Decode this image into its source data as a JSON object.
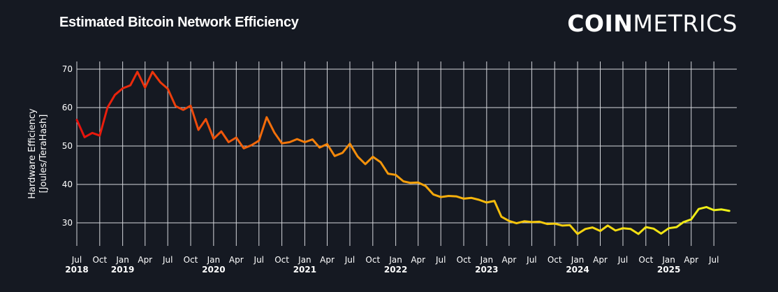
{
  "title": "Estimated Bitcoin Network Efficiency",
  "logo": {
    "bold": "COIN",
    "light": "METRICS"
  },
  "chart_data": {
    "type": "line",
    "title": "Estimated Bitcoin Network Efficiency",
    "ylabel_line1": "Hardware Efficiency",
    "ylabel_line2": "[Joules/TeraHash]",
    "xlabel": "",
    "ylim": [
      24,
      72
    ],
    "xlim": [
      "2018-07-01",
      "2025-10-01"
    ],
    "grid": true,
    "color_gradient": [
      "#e8100c",
      "#f47b0a",
      "#f6c40c",
      "#eef519"
    ],
    "yticks": [
      30,
      40,
      50,
      60,
      70
    ],
    "x_ticks": [
      {
        "date": "2018-07-01",
        "label": "Jul",
        "year": "2018"
      },
      {
        "date": "2018-10-01",
        "label": "Oct",
        "year": ""
      },
      {
        "date": "2019-01-01",
        "label": "Jan",
        "year": "2019"
      },
      {
        "date": "2019-04-01",
        "label": "Apr",
        "year": ""
      },
      {
        "date": "2019-07-01",
        "label": "Jul",
        "year": ""
      },
      {
        "date": "2019-10-01",
        "label": "Oct",
        "year": ""
      },
      {
        "date": "2020-01-01",
        "label": "Jan",
        "year": "2020"
      },
      {
        "date": "2020-04-01",
        "label": "Apr",
        "year": ""
      },
      {
        "date": "2020-07-01",
        "label": "Jul",
        "year": ""
      },
      {
        "date": "2020-10-01",
        "label": "Oct",
        "year": ""
      },
      {
        "date": "2021-01-01",
        "label": "Jan",
        "year": "2021"
      },
      {
        "date": "2021-04-01",
        "label": "Apr",
        "year": ""
      },
      {
        "date": "2021-07-01",
        "label": "Jul",
        "year": ""
      },
      {
        "date": "2021-10-01",
        "label": "Oct",
        "year": ""
      },
      {
        "date": "2022-01-01",
        "label": "Jan",
        "year": "2022"
      },
      {
        "date": "2022-04-01",
        "label": "Apr",
        "year": ""
      },
      {
        "date": "2022-07-01",
        "label": "Jul",
        "year": ""
      },
      {
        "date": "2022-10-01",
        "label": "Oct",
        "year": ""
      },
      {
        "date": "2023-01-01",
        "label": "Jan",
        "year": "2023"
      },
      {
        "date": "2023-04-01",
        "label": "Apr",
        "year": ""
      },
      {
        "date": "2023-07-01",
        "label": "Jul",
        "year": ""
      },
      {
        "date": "2023-10-01",
        "label": "Oct",
        "year": ""
      },
      {
        "date": "2024-01-01",
        "label": "Jan",
        "year": "2024"
      },
      {
        "date": "2024-04-01",
        "label": "Apr",
        "year": ""
      },
      {
        "date": "2024-07-01",
        "label": "Jul",
        "year": ""
      },
      {
        "date": "2024-10-01",
        "label": "Oct",
        "year": ""
      },
      {
        "date": "2025-01-01",
        "label": "Jan",
        "year": "2025"
      },
      {
        "date": "2025-04-01",
        "label": "Apr",
        "year": ""
      },
      {
        "date": "2025-07-01",
        "label": "Jul",
        "year": ""
      }
    ],
    "series": [
      {
        "x": [
          "2018-07",
          "2018-08",
          "2018-09",
          "2018-10",
          "2018-11",
          "2018-12",
          "2019-01",
          "2019-02",
          "2019-03",
          "2019-04",
          "2019-05",
          "2019-06",
          "2019-07",
          "2019-08",
          "2019-09",
          "2019-10",
          "2019-11",
          "2019-12",
          "2020-01",
          "2020-02",
          "2020-03",
          "2020-04",
          "2020-05",
          "2020-06",
          "2020-07",
          "2020-08",
          "2020-09",
          "2020-10",
          "2020-11",
          "2020-12",
          "2021-01",
          "2021-02",
          "2021-03",
          "2021-04",
          "2021-05",
          "2021-06",
          "2021-07",
          "2021-08",
          "2021-09",
          "2021-10",
          "2021-11",
          "2021-12",
          "2022-01",
          "2022-02",
          "2022-03",
          "2022-04",
          "2022-05",
          "2022-06",
          "2022-07",
          "2022-08",
          "2022-09",
          "2022-10",
          "2022-11",
          "2022-12",
          "2023-01",
          "2023-02",
          "2023-03",
          "2023-04",
          "2023-05",
          "2023-06",
          "2023-07",
          "2023-08",
          "2023-09",
          "2023-10",
          "2023-11",
          "2023-12",
          "2024-01",
          "2024-02",
          "2024-03",
          "2024-04",
          "2024-05",
          "2024-06",
          "2024-07",
          "2024-08",
          "2024-09",
          "2024-10",
          "2024-11",
          "2024-12",
          "2025-01",
          "2025-02",
          "2025-03",
          "2025-04",
          "2025-05",
          "2025-06",
          "2025-07",
          "2025-08",
          "2025-09"
        ],
        "values": [
          56.8,
          52.3,
          53.4,
          52.7,
          60.0,
          63.3,
          65.0,
          65.8,
          69.3,
          65.2,
          69.3,
          66.6,
          64.9,
          60.4,
          59.4,
          60.5,
          54.2,
          57.0,
          51.9,
          53.8,
          51.0,
          52.2,
          49.4,
          50.2,
          51.4,
          57.5,
          53.5,
          50.7,
          51.0,
          51.8,
          51.0,
          51.7,
          49.6,
          50.5,
          47.4,
          48.2,
          50.6,
          47.3,
          45.3,
          47.2,
          45.8,
          42.8,
          42.5,
          40.8,
          40.4,
          40.5,
          39.6,
          37.4,
          36.7,
          37.0,
          36.9,
          36.3,
          36.5,
          36.0,
          35.3,
          35.7,
          31.6,
          30.5,
          29.9,
          30.4,
          30.2,
          30.3,
          29.7,
          29.8,
          29.3,
          29.4,
          27.1,
          28.4,
          28.8,
          27.9,
          29.3,
          28.0,
          28.6,
          28.4,
          27.1,
          28.9,
          28.5,
          27.2,
          28.6,
          28.9,
          30.2,
          30.9,
          33.6,
          34.1,
          33.3,
          33.5,
          33.1
        ]
      }
    ]
  }
}
